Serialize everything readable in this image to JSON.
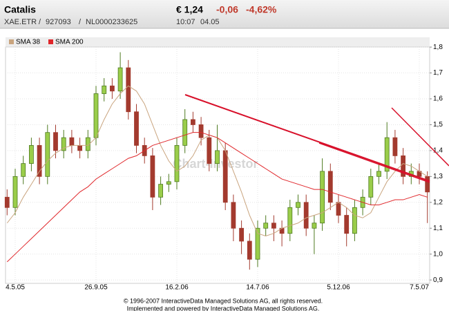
{
  "header": {
    "name": "Catalis",
    "price": "€ 1,24",
    "change": "-0,06",
    "change_pct": "-4,62%",
    "exchange": "XAE.ETR",
    "sep1": "/",
    "wkn": "927093",
    "sep2": "/",
    "isin": "NL0000233625",
    "time": "10:07",
    "date": "04.05"
  },
  "chart_data": {
    "type": "candlestick",
    "watermark": "Chart-Investor",
    "categories": [
      null,
      "4.5.05",
      null,
      null,
      null,
      null,
      null,
      null,
      null,
      null,
      null,
      "26.9.05",
      null,
      null,
      null,
      null,
      null,
      null,
      null,
      null,
      null,
      "16.2.06",
      null,
      null,
      null,
      null,
      null,
      null,
      null,
      null,
      null,
      "14.7.06",
      null,
      null,
      null,
      null,
      null,
      null,
      null,
      null,
      null,
      "5.12.06",
      null,
      null,
      null,
      null,
      null,
      null,
      null,
      null,
      null,
      "7.5.07",
      null
    ],
    "open": [
      1.22,
      1.18,
      1.3,
      1.35,
      1.42,
      1.3,
      1.47,
      1.4,
      1.45,
      1.42,
      1.4,
      1.45,
      1.62,
      1.65,
      1.63,
      1.72,
      1.55,
      1.42,
      1.38,
      1.22,
      1.27,
      1.28,
      1.42,
      1.52,
      1.5,
      1.45,
      1.35,
      1.4,
      1.2,
      1.1,
      1.05,
      0.98,
      1.1,
      1.12,
      1.1,
      1.08,
      1.18,
      1.2,
      1.1,
      1.12,
      1.32,
      1.2,
      1.15,
      1.08,
      1.18,
      1.22,
      1.3,
      1.32,
      1.45,
      1.38,
      1.3,
      1.32,
      1.3
    ],
    "high": [
      1.25,
      1.33,
      1.38,
      1.45,
      1.45,
      1.5,
      1.5,
      1.48,
      1.48,
      1.45,
      1.48,
      1.65,
      1.68,
      1.68,
      1.78,
      1.75,
      1.58,
      1.45,
      1.41,
      1.3,
      1.31,
      1.45,
      1.56,
      1.55,
      1.53,
      1.48,
      1.5,
      1.43,
      1.23,
      1.13,
      1.08,
      1.13,
      1.15,
      1.15,
      1.13,
      1.21,
      1.23,
      1.23,
      1.15,
      1.37,
      1.35,
      1.23,
      1.18,
      1.21,
      1.25,
      1.33,
      1.35,
      1.51,
      1.48,
      1.41,
      1.35,
      1.35,
      1.32
    ],
    "low": [
      1.15,
      1.15,
      1.27,
      1.32,
      1.27,
      1.27,
      1.37,
      1.37,
      1.39,
      1.37,
      1.37,
      1.42,
      1.59,
      1.6,
      1.6,
      1.52,
      1.39,
      1.35,
      1.17,
      1.19,
      1.24,
      1.25,
      1.39,
      1.47,
      1.42,
      1.32,
      1.32,
      1.17,
      1.05,
      1.0,
      0.94,
      0.95,
      1.07,
      1.05,
      1.03,
      1.05,
      1.15,
      1.07,
      1.0,
      1.09,
      1.17,
      1.12,
      1.03,
      1.05,
      1.15,
      1.19,
      1.27,
      1.29,
      1.35,
      1.27,
      1.27,
      1.27,
      1.12
    ],
    "close": [
      1.18,
      1.3,
      1.35,
      1.42,
      1.3,
      1.47,
      1.4,
      1.45,
      1.42,
      1.4,
      1.45,
      1.62,
      1.65,
      1.63,
      1.72,
      1.55,
      1.42,
      1.38,
      1.22,
      1.27,
      1.28,
      1.42,
      1.52,
      1.5,
      1.45,
      1.35,
      1.4,
      1.2,
      1.1,
      1.05,
      0.98,
      1.1,
      1.12,
      1.1,
      1.08,
      1.18,
      1.2,
      1.1,
      1.12,
      1.32,
      1.2,
      1.15,
      1.08,
      1.18,
      1.22,
      1.3,
      1.32,
      1.45,
      1.38,
      1.3,
      1.32,
      1.3,
      1.24
    ],
    "up_color": "#9acd4a",
    "down_color": "#a33a2e",
    "series": [
      {
        "name": "SMA 38",
        "color": "#c9a47e",
        "values": [
          1.12,
          1.16,
          1.22,
          1.27,
          1.32,
          1.36,
          1.39,
          1.41,
          1.42,
          1.42,
          1.42,
          1.45,
          1.52,
          1.58,
          1.62,
          1.65,
          1.63,
          1.58,
          1.5,
          1.42,
          1.36,
          1.32,
          1.34,
          1.38,
          1.44,
          1.46,
          1.45,
          1.4,
          1.32,
          1.24,
          1.15,
          1.08,
          1.07,
          1.08,
          1.1,
          1.11,
          1.12,
          1.14,
          1.15,
          1.16,
          1.18,
          1.2,
          1.18,
          1.15,
          1.14,
          1.16,
          1.22,
          1.28,
          1.32,
          1.35,
          1.34,
          1.32,
          1.3
        ]
      },
      {
        "name": "SMA 200",
        "color": "#e0262a",
        "values": [
          0.97,
          1.0,
          1.03,
          1.06,
          1.09,
          1.12,
          1.15,
          1.18,
          1.21,
          1.24,
          1.26,
          1.29,
          1.31,
          1.33,
          1.35,
          1.37,
          1.38,
          1.4,
          1.42,
          1.43,
          1.44,
          1.45,
          1.46,
          1.47,
          1.47,
          1.46,
          1.45,
          1.43,
          1.41,
          1.39,
          1.37,
          1.35,
          1.33,
          1.31,
          1.29,
          1.28,
          1.27,
          1.26,
          1.25,
          1.25,
          1.24,
          1.23,
          1.22,
          1.21,
          1.2,
          1.19,
          1.19,
          1.2,
          1.21,
          1.21,
          1.22,
          1.23,
          1.22
        ]
      }
    ],
    "ylim": [
      0.887,
      1.827
    ],
    "yticks": [
      {
        "value": 0.9,
        "label": "0,9"
      },
      {
        "value": 1.0,
        "label": "1,0"
      },
      {
        "value": 1.1,
        "label": "1,1"
      },
      {
        "value": 1.2,
        "label": "1,2"
      },
      {
        "value": 1.3,
        "label": "1,3"
      },
      {
        "value": 1.4,
        "label": "1,4"
      },
      {
        "value": 1.5,
        "label": "1,5"
      },
      {
        "value": 1.6,
        "label": "1,6"
      },
      {
        "value": 1.7,
        "label": "1,7"
      },
      {
        "value": 1.8,
        "label": "1,8"
      }
    ],
    "grid": true
  },
  "footer": {
    "line1": "© 1996-2007 InteractiveData Managed Solutions  AG, all rights reserved.",
    "line2": "Implemented and powered by  InteractiveData Managed Solutions  AG."
  }
}
